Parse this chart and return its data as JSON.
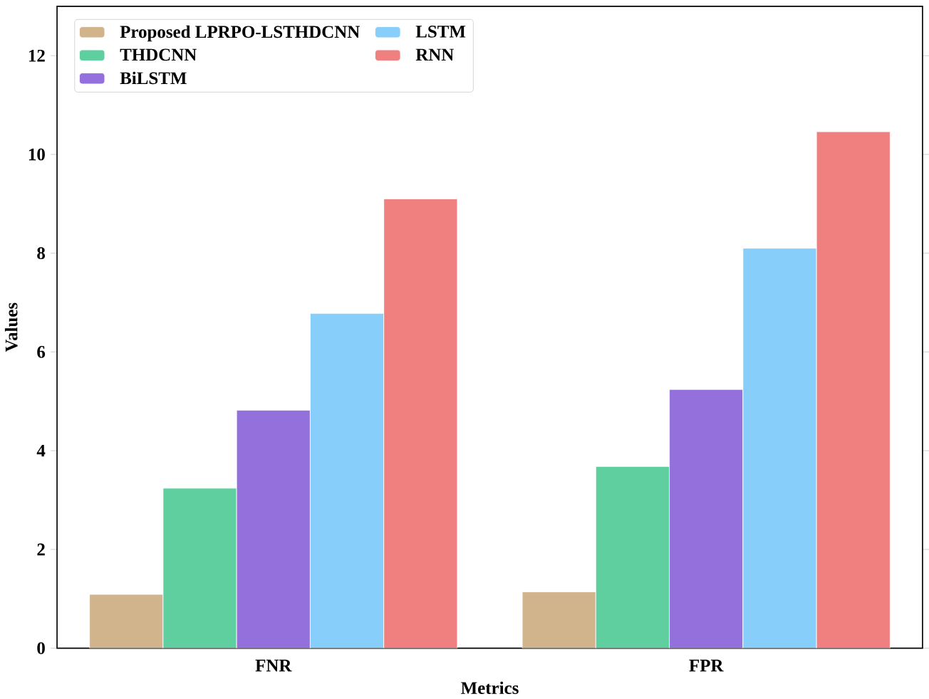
{
  "chart_data": {
    "type": "bar",
    "xlabel": "Metrics",
    "ylabel": "Values",
    "categories": [
      "FNR",
      "FPR"
    ],
    "series": [
      {
        "name": "Proposed LPRPO-LSTHDCNN",
        "color": "#d2b48c",
        "values": [
          1.09,
          1.14
        ]
      },
      {
        "name": "THDCNN",
        "color": "#5fcf9f",
        "values": [
          3.24,
          3.68
        ]
      },
      {
        "name": "BiLSTM",
        "color": "#9370db",
        "values": [
          4.82,
          5.24
        ]
      },
      {
        "name": "LSTM",
        "color": "#87cefa",
        "values": [
          6.78,
          8.1
        ]
      },
      {
        "name": "RNN",
        "color": "#f08080",
        "values": [
          9.1,
          10.46
        ]
      }
    ],
    "ylim": [
      0,
      13
    ],
    "yticks": [
      0,
      2,
      4,
      6,
      8,
      10,
      12
    ],
    "legend": "top left",
    "grid": false
  }
}
